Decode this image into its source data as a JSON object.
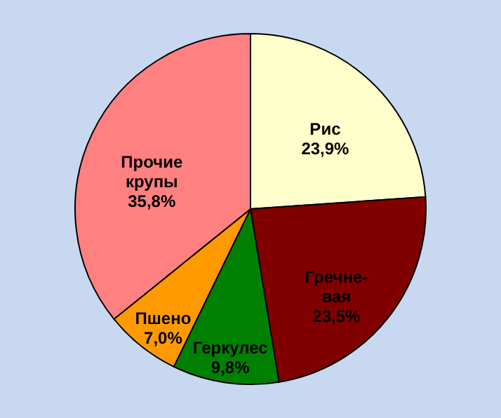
{
  "chart_data": {
    "type": "pie",
    "categories": [
      "Рис",
      "Гречне-вая",
      "Геркулес",
      "Пшено",
      "Прочие крупы"
    ],
    "values": [
      23.9,
      23.5,
      9.8,
      7.0,
      35.8
    ],
    "colors": [
      "#ffffcc",
      "#800000",
      "#008000",
      "#ff9900",
      "#ff8080"
    ],
    "value_labels": [
      "23,9%",
      "23,5%",
      "9,8%",
      "7,0%",
      "35,8%"
    ]
  }
}
